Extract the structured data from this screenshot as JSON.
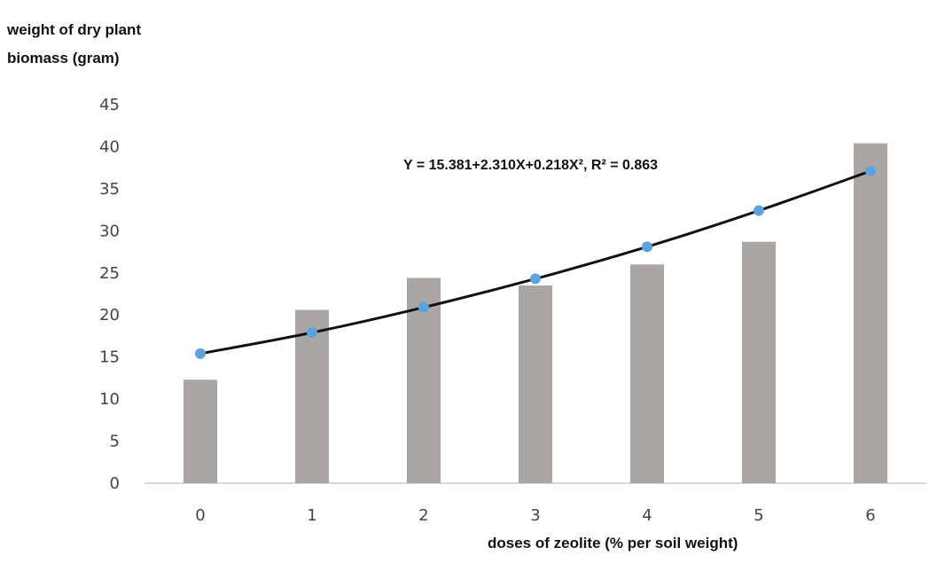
{
  "chart_data": {
    "type": "bar",
    "ylabel": "weight of dry plant\nbiomass (gram)",
    "xlabel": "doses of zeolite (% per soil weight)",
    "categories": [
      "0",
      "1",
      "2",
      "3",
      "4",
      "5",
      "6"
    ],
    "ylim": [
      0,
      45
    ],
    "yticks": [
      "0",
      "5",
      "10",
      "15",
      "20",
      "25",
      "30",
      "35",
      "40",
      "45"
    ],
    "grid": false,
    "legend": "none",
    "series": [
      {
        "type": "bar",
        "values": [
          12.3,
          20.6,
          24.4,
          23.5,
          26.0,
          28.7,
          40.4
        ],
        "color": "#aaa6a4"
      },
      {
        "type": "line",
        "values": [
          15.4,
          17.9,
          20.9,
          24.3,
          28.1,
          32.4,
          37.1
        ],
        "color": "#111111",
        "marker_color": "#5ba3e0"
      }
    ],
    "annotation": "Y = 15.381+2.310X+0.218X²,  R² = 0.863"
  }
}
